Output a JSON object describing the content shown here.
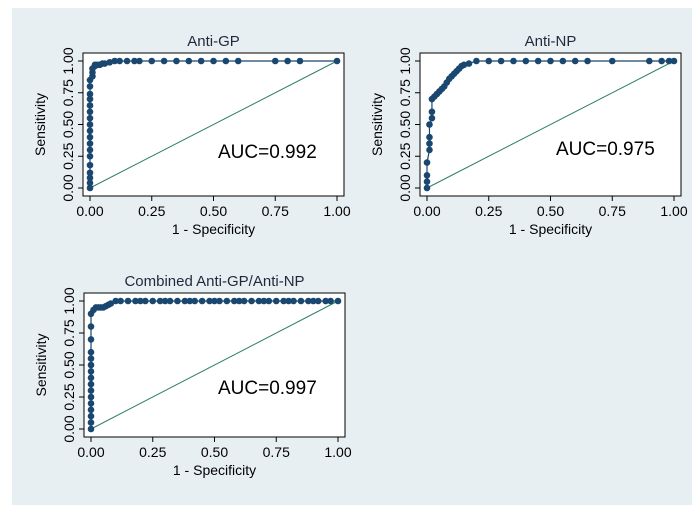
{
  "figure": {
    "background_color": "#e8eff2",
    "marker_color": "#1a476f",
    "line_color": "#1a476f",
    "reference_color": "#2e7d6b"
  },
  "chart_data": [
    {
      "type": "line",
      "title": "Anti-GP",
      "xlabel": "1 - Specificity",
      "ylabel": "Sensitivity",
      "xlim": [
        0,
        1
      ],
      "ylim": [
        0,
        1
      ],
      "xticks": [
        "0.00",
        "0.25",
        "0.50",
        "0.75",
        "1.00"
      ],
      "yticks": [
        "0.00",
        "0.25",
        "0.50",
        "0.75",
        "1.00"
      ],
      "annotation": "AUC=0.992",
      "reference_line": [
        [
          0,
          0
        ],
        [
          1,
          1
        ]
      ],
      "series": [
        {
          "x": [
            0,
            0,
            0,
            0,
            0,
            0,
            0,
            0,
            0,
            0,
            0,
            0,
            0,
            0,
            0,
            0,
            0,
            0,
            0.01,
            0.01,
            0.01,
            0.02,
            0.02,
            0.03,
            0.04,
            0.05,
            0.06,
            0.08,
            0.1,
            0.12,
            0.15,
            0.18,
            0.2,
            0.25,
            0.3,
            0.35,
            0.4,
            0.45,
            0.5,
            0.55,
            0.6,
            0.75,
            0.8,
            0.85,
            1.0
          ],
          "y": [
            0,
            0.04,
            0.08,
            0.12,
            0.18,
            0.25,
            0.3,
            0.35,
            0.4,
            0.45,
            0.5,
            0.55,
            0.6,
            0.65,
            0.7,
            0.74,
            0.8,
            0.85,
            0.88,
            0.91,
            0.94,
            0.96,
            0.97,
            0.97,
            0.97,
            0.98,
            0.98,
            0.99,
            1,
            1,
            1,
            1,
            1,
            1,
            1,
            1,
            1,
            1,
            1,
            1,
            1,
            1,
            1,
            1,
            1
          ]
        }
      ]
    },
    {
      "type": "line",
      "title": "Anti-NP",
      "xlabel": "1 - Specificity",
      "ylabel": "Sensitivity",
      "xlim": [
        0,
        1
      ],
      "ylim": [
        0,
        1
      ],
      "xticks": [
        "0.00",
        "0.25",
        "0.50",
        "0.75",
        "1.00"
      ],
      "yticks": [
        "0.00",
        "0.25",
        "0.50",
        "0.75",
        "1.00"
      ],
      "annotation": "AUC=0.975",
      "reference_line": [
        [
          0,
          0
        ],
        [
          1,
          1
        ]
      ],
      "series": [
        {
          "x": [
            0,
            0,
            0,
            0,
            0.01,
            0.01,
            0.01,
            0.01,
            0.02,
            0.02,
            0.02,
            0.03,
            0.04,
            0.05,
            0.06,
            0.07,
            0.08,
            0.09,
            0.1,
            0.11,
            0.12,
            0.13,
            0.14,
            0.15,
            0.17,
            0.2,
            0.25,
            0.3,
            0.35,
            0.4,
            0.45,
            0.5,
            0.55,
            0.6,
            0.65,
            0.75,
            0.9,
            0.95,
            0.98,
            1.0
          ],
          "y": [
            0,
            0.05,
            0.1,
            0.2,
            0.3,
            0.35,
            0.4,
            0.5,
            0.55,
            0.6,
            0.7,
            0.72,
            0.74,
            0.76,
            0.78,
            0.8,
            0.83,
            0.86,
            0.88,
            0.9,
            0.92,
            0.94,
            0.96,
            0.97,
            0.98,
            1,
            1,
            1,
            1,
            1,
            1,
            1,
            1,
            1,
            1,
            1,
            1,
            1,
            1,
            1
          ]
        }
      ]
    },
    {
      "type": "line",
      "title": "Combined Anti-GP/Anti-NP",
      "xlabel": "1 - Specificity",
      "ylabel": "Sensitivity",
      "xlim": [
        0,
        1
      ],
      "ylim": [
        0,
        1
      ],
      "xticks": [
        "0.00",
        "0.25",
        "0.50",
        "0.75",
        "1.00"
      ],
      "yticks": [
        "0.00",
        "0.25",
        "0.50",
        "0.75",
        "1.00"
      ],
      "annotation": "AUC=0.997",
      "reference_line": [
        [
          0,
          0
        ],
        [
          1,
          1
        ]
      ],
      "series": [
        {
          "x": [
            0,
            0,
            0,
            0,
            0,
            0,
            0,
            0,
            0,
            0,
            0,
            0,
            0,
            0,
            0,
            0,
            0.01,
            0.02,
            0.03,
            0.04,
            0.05,
            0.06,
            0.07,
            0.08,
            0.1,
            0.12,
            0.15,
            0.18,
            0.2,
            0.22,
            0.25,
            0.28,
            0.3,
            0.32,
            0.35,
            0.38,
            0.4,
            0.42,
            0.45,
            0.48,
            0.5,
            0.52,
            0.55,
            0.58,
            0.6,
            0.62,
            0.65,
            0.68,
            0.7,
            0.72,
            0.75,
            0.78,
            0.8,
            0.82,
            0.85,
            0.88,
            0.9,
            0.92,
            0.95,
            0.97,
            1.0
          ],
          "y": [
            0,
            0.05,
            0.1,
            0.15,
            0.2,
            0.25,
            0.3,
            0.35,
            0.4,
            0.45,
            0.5,
            0.55,
            0.6,
            0.7,
            0.8,
            0.9,
            0.93,
            0.95,
            0.95,
            0.95,
            0.95,
            0.96,
            0.97,
            0.98,
            1,
            1,
            1,
            1,
            1,
            1,
            1,
            1,
            1,
            1,
            1,
            1,
            1,
            1,
            1,
            1,
            1,
            1,
            1,
            1,
            1,
            1,
            1,
            1,
            1,
            1,
            1,
            1,
            1,
            1,
            1,
            1,
            1,
            1,
            1,
            1,
            1
          ]
        }
      ]
    }
  ]
}
